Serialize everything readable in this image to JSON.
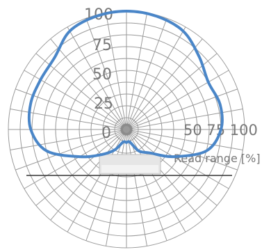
{
  "chart_data": {
    "type": "polar",
    "title": "",
    "radial_axis": {
      "range": [
        0,
        100
      ],
      "ticks": [
        0,
        25,
        50,
        75,
        100
      ],
      "tick_labels_vertical": [
        "0",
        "25",
        "50",
        "75",
        "100"
      ],
      "tick_labels_horizontal": "50 75 100",
      "label": "Read range [%]"
    },
    "grid": true,
    "series": [
      {
        "color": "#4a86c8",
        "points": [
          {
            "angle_deg": 0,
            "r": 100
          },
          {
            "angle_deg": 15,
            "r": 99
          },
          {
            "angle_deg": 30,
            "r": 96
          },
          {
            "angle_deg": 45,
            "r": 87
          },
          {
            "angle_deg": 60,
            "r": 80
          },
          {
            "angle_deg": 75,
            "r": 82
          },
          {
            "angle_deg": 90,
            "r": 80
          },
          {
            "angle_deg": 105,
            "r": 70
          },
          {
            "angle_deg": 120,
            "r": 46
          },
          {
            "angle_deg": 135,
            "r": 28
          },
          {
            "angle_deg": 150,
            "r": 21
          },
          {
            "angle_deg": 165,
            "r": 11
          },
          {
            "angle_deg": 180,
            "r": 11
          },
          {
            "angle_deg": 195,
            "r": 11
          },
          {
            "angle_deg": 210,
            "r": 20
          },
          {
            "angle_deg": 225,
            "r": 30
          },
          {
            "angle_deg": 240,
            "r": 46
          },
          {
            "angle_deg": 255,
            "r": 70
          },
          {
            "angle_deg": 270,
            "r": 81
          },
          {
            "angle_deg": 285,
            "r": 84
          },
          {
            "angle_deg": 300,
            "r": 84
          },
          {
            "angle_deg": 315,
            "r": 86
          },
          {
            "angle_deg": 330,
            "r": 96
          },
          {
            "angle_deg": 345,
            "r": 99
          },
          {
            "angle_deg": 360,
            "r": 100
          }
        ]
      }
    ],
    "colors": {
      "grid": "#9a9a9a",
      "curve": "#4a86c8",
      "text": "#777777",
      "reader": "#e6e6e6",
      "baseline": "#333333"
    }
  }
}
